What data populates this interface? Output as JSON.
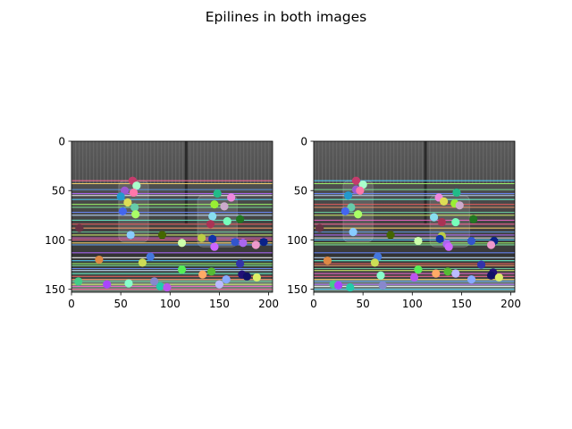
{
  "chart_data": {
    "title": "Epilines in both images",
    "type": "image",
    "panels": [
      {
        "name": "left",
        "xlim": [
          0,
          204
        ],
        "ylim": [
          153,
          0
        ],
        "xticks": [
          0,
          50,
          100,
          150,
          200
        ],
        "yticks": [
          0,
          50,
          100,
          150
        ],
        "xtick_labels": [
          "0",
          "50",
          "100",
          "150",
          "200"
        ],
        "ytick_labels": [
          "0",
          "50",
          "100",
          "150"
        ],
        "epilines_y": [
          40,
          43,
          49,
          53,
          55,
          59,
          64,
          67,
          72,
          75,
          80,
          84,
          88,
          92,
          95,
          98,
          100,
          103,
          105,
          113,
          118,
          121,
          124,
          126,
          129,
          131,
          134,
          137,
          140,
          142,
          145,
          147,
          150
        ],
        "points": [
          {
            "x": 62,
            "y": 40,
            "color": "#c43c6c"
          },
          {
            "x": 66,
            "y": 45,
            "color": "#aaffcc"
          },
          {
            "x": 54,
            "y": 50,
            "color": "#9b59d0"
          },
          {
            "x": 63,
            "y": 52,
            "color": "#ff77aa"
          },
          {
            "x": 50,
            "y": 56,
            "color": "#2299cc"
          },
          {
            "x": 148,
            "y": 53,
            "color": "#22bb88"
          },
          {
            "x": 162,
            "y": 57,
            "color": "#ee88dd"
          },
          {
            "x": 57,
            "y": 62,
            "color": "#dddd55"
          },
          {
            "x": 145,
            "y": 64,
            "color": "#99ee33"
          },
          {
            "x": 155,
            "y": 66,
            "color": "#ccaacc"
          },
          {
            "x": 64,
            "y": 67,
            "color": "#66ccaa"
          },
          {
            "x": 52,
            "y": 71,
            "color": "#4466ee"
          },
          {
            "x": 65,
            "y": 74,
            "color": "#aaff66"
          },
          {
            "x": 143,
            "y": 76,
            "color": "#88ddee"
          },
          {
            "x": 171,
            "y": 79,
            "color": "#227722"
          },
          {
            "x": 141,
            "y": 84,
            "color": "#aa3355"
          },
          {
            "x": 158,
            "y": 81,
            "color": "#77ffbb"
          },
          {
            "x": 8,
            "y": 88,
            "color": "#663344"
          },
          {
            "x": 60,
            "y": 95,
            "color": "#88ccff"
          },
          {
            "x": 92,
            "y": 95,
            "color": "#446600"
          },
          {
            "x": 132,
            "y": 98,
            "color": "#bbcc44"
          },
          {
            "x": 143,
            "y": 99,
            "color": "#1133aa"
          },
          {
            "x": 112,
            "y": 103,
            "color": "#ccffaa"
          },
          {
            "x": 166,
            "y": 102,
            "color": "#3355cc"
          },
          {
            "x": 174,
            "y": 103,
            "color": "#aa66ee"
          },
          {
            "x": 195,
            "y": 102,
            "color": "#0a2288"
          },
          {
            "x": 187,
            "y": 105,
            "color": "#ee99cc"
          },
          {
            "x": 145,
            "y": 107,
            "color": "#cc66ff"
          },
          {
            "x": 80,
            "y": 117,
            "color": "#4477dd"
          },
          {
            "x": 28,
            "y": 120,
            "color": "#dd8844"
          },
          {
            "x": 72,
            "y": 123,
            "color": "#ccdd55"
          },
          {
            "x": 171,
            "y": 124,
            "color": "#3333aa"
          },
          {
            "x": 112,
            "y": 130,
            "color": "#55ee55"
          },
          {
            "x": 142,
            "y": 132,
            "color": "#55bb33"
          },
          {
            "x": 133,
            "y": 135,
            "color": "#ffaa66"
          },
          {
            "x": 173,
            "y": 135,
            "color": "#221177"
          },
          {
            "x": 178,
            "y": 137,
            "color": "#111166"
          },
          {
            "x": 188,
            "y": 138,
            "color": "#ddee66"
          },
          {
            "x": 157,
            "y": 140,
            "color": "#88aaff"
          },
          {
            "x": 7,
            "y": 142,
            "color": "#44cc88"
          },
          {
            "x": 36,
            "y": 145,
            "color": "#aa44ff"
          },
          {
            "x": 58,
            "y": 144,
            "color": "#88ffcc"
          },
          {
            "x": 90,
            "y": 147,
            "color": "#22ccaa"
          },
          {
            "x": 97,
            "y": 148,
            "color": "#bb55ee"
          },
          {
            "x": 150,
            "y": 145,
            "color": "#bbbbff"
          },
          {
            "x": 84,
            "y": 142,
            "color": "#8888cc"
          }
        ]
      },
      {
        "name": "right",
        "xlim": [
          0,
          204
        ],
        "ylim": [
          153,
          0
        ],
        "xticks": [
          0,
          50,
          100,
          150,
          200
        ],
        "yticks": [
          0,
          50,
          100,
          150
        ],
        "xtick_labels": [
          "0",
          "50",
          "100",
          "150",
          "200"
        ],
        "ytick_labels": [
          "0",
          "50",
          "100",
          "150"
        ],
        "epilines_y": [
          40,
          43,
          49,
          53,
          55,
          59,
          64,
          67,
          72,
          75,
          80,
          84,
          88,
          92,
          95,
          98,
          100,
          103,
          105,
          113,
          118,
          121,
          124,
          126,
          129,
          131,
          134,
          137,
          140,
          142,
          145,
          147,
          150
        ],
        "points": [
          {
            "x": 43,
            "y": 40,
            "color": "#c43c6c"
          },
          {
            "x": 50,
            "y": 44,
            "color": "#aaffcc"
          },
          {
            "x": 43,
            "y": 49,
            "color": "#9b59d0"
          },
          {
            "x": 47,
            "y": 50,
            "color": "#ff77aa"
          },
          {
            "x": 35,
            "y": 55,
            "color": "#2299cc"
          },
          {
            "x": 145,
            "y": 52,
            "color": "#22bb88"
          },
          {
            "x": 127,
            "y": 57,
            "color": "#ee88dd"
          },
          {
            "x": 132,
            "y": 61,
            "color": "#dddd55"
          },
          {
            "x": 143,
            "y": 63,
            "color": "#99ee33"
          },
          {
            "x": 148,
            "y": 65,
            "color": "#ccaacc"
          },
          {
            "x": 38,
            "y": 67,
            "color": "#66ccaa"
          },
          {
            "x": 32,
            "y": 71,
            "color": "#4466ee"
          },
          {
            "x": 45,
            "y": 74,
            "color": "#aaff66"
          },
          {
            "x": 122,
            "y": 77,
            "color": "#88ddee"
          },
          {
            "x": 162,
            "y": 79,
            "color": "#227722"
          },
          {
            "x": 130,
            "y": 82,
            "color": "#aa3355"
          },
          {
            "x": 144,
            "y": 82,
            "color": "#77ffbb"
          },
          {
            "x": 6,
            "y": 88,
            "color": "#663344"
          },
          {
            "x": 40,
            "y": 92,
            "color": "#88ccff"
          },
          {
            "x": 78,
            "y": 95,
            "color": "#446600"
          },
          {
            "x": 130,
            "y": 96,
            "color": "#bbcc44"
          },
          {
            "x": 128,
            "y": 99,
            "color": "#1133aa"
          },
          {
            "x": 106,
            "y": 101,
            "color": "#ccffaa"
          },
          {
            "x": 160,
            "y": 101,
            "color": "#3355cc"
          },
          {
            "x": 135,
            "y": 104,
            "color": "#aa66ee"
          },
          {
            "x": 183,
            "y": 101,
            "color": "#0a2288"
          },
          {
            "x": 180,
            "y": 105,
            "color": "#ee99cc"
          },
          {
            "x": 137,
            "y": 107,
            "color": "#cc66ff"
          },
          {
            "x": 65,
            "y": 117,
            "color": "#4477dd"
          },
          {
            "x": 14,
            "y": 121,
            "color": "#dd8844"
          },
          {
            "x": 62,
            "y": 123,
            "color": "#ccdd55"
          },
          {
            "x": 170,
            "y": 125,
            "color": "#3333aa"
          },
          {
            "x": 106,
            "y": 130,
            "color": "#55ee55"
          },
          {
            "x": 136,
            "y": 132,
            "color": "#55bb33"
          },
          {
            "x": 124,
            "y": 134,
            "color": "#ffaa66"
          },
          {
            "x": 182,
            "y": 133,
            "color": "#221177"
          },
          {
            "x": 180,
            "y": 136,
            "color": "#111166"
          },
          {
            "x": 188,
            "y": 138,
            "color": "#ddee66"
          },
          {
            "x": 160,
            "y": 140,
            "color": "#88aaff"
          },
          {
            "x": 20,
            "y": 145,
            "color": "#44cc88"
          },
          {
            "x": 25,
            "y": 146,
            "color": "#aa44ff"
          },
          {
            "x": 68,
            "y": 136,
            "color": "#88ffcc"
          },
          {
            "x": 37,
            "y": 148,
            "color": "#22ccaa"
          },
          {
            "x": 102,
            "y": 138,
            "color": "#bb55ee"
          },
          {
            "x": 144,
            "y": 134,
            "color": "#bbbbff"
          },
          {
            "x": 70,
            "y": 146,
            "color": "#8888cc"
          }
        ]
      }
    ]
  },
  "colors": {
    "line_palette": [
      "#ff6b9a",
      "#7ff0a0",
      "#d6f06a",
      "#4fd0ff",
      "#ff9b6b",
      "#b26bff",
      "#6bffd6",
      "#ffd86b",
      "#6b8bff",
      "#ff6bd6",
      "#a0ff6b",
      "#6bd0a0",
      "#ffffff",
      "#f06060",
      "#60a0f0",
      "#c0e0ff"
    ]
  }
}
